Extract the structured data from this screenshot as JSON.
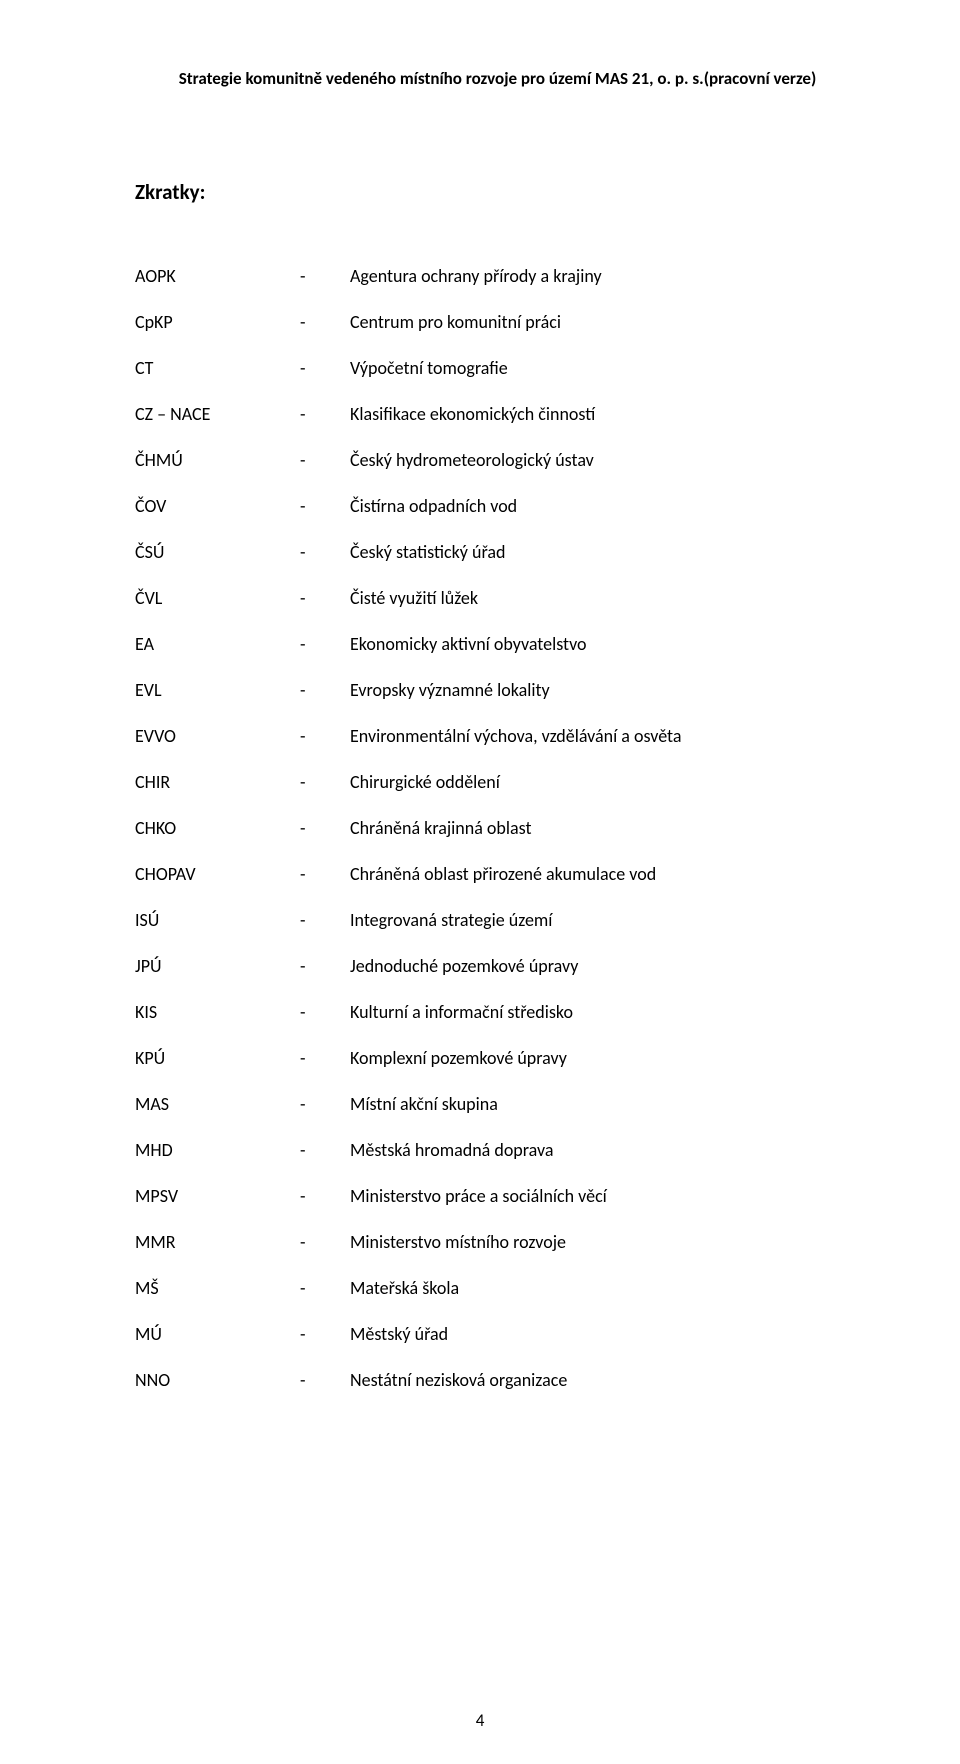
{
  "header": "Strategie komunitně vedeného místního rozvoje pro území  MAS 21, o. p. s.(pracovní verze)",
  "section_title": "Zkratky:",
  "separator": "-",
  "page_number": "4",
  "abbreviations": [
    {
      "key": "AOPK",
      "def": "Agentura ochrany přírody a krajiny"
    },
    {
      "key": "CpKP",
      "def": "Centrum pro komunitní práci"
    },
    {
      "key": "CT",
      "def": "Výpočetní tomografie"
    },
    {
      "key": "CZ – NACE",
      "def": "Klasifikace ekonomických činností"
    },
    {
      "key": "ČHMÚ",
      "def": "Český hydrometeorologický ústav"
    },
    {
      "key": "ČOV",
      "def": "Čistírna odpadních vod"
    },
    {
      "key": "ČSÚ",
      "def": "Český statistický úřad"
    },
    {
      "key": "ČVL",
      "def": "Čisté využití lůžek"
    },
    {
      "key": "EA",
      "def": "Ekonomicky aktivní obyvatelstvo"
    },
    {
      "key": "EVL",
      "def": "Evropsky významné lokality"
    },
    {
      "key": "EVVO",
      "def": "Environmentální výchova, vzdělávání a osvěta"
    },
    {
      "key": "CHIR",
      "def": "Chirurgické oddělení"
    },
    {
      "key": "CHKO",
      "def": "Chráněná krajinná oblast"
    },
    {
      "key": "CHOPAV",
      "def": "Chráněná oblast přirozené akumulace vod"
    },
    {
      "key": "ISÚ",
      "def": "Integrovaná strategie území"
    },
    {
      "key": "JPÚ",
      "def": "Jednoduché pozemkové úpravy"
    },
    {
      "key": "KIS",
      "def": "Kulturní a informační středisko"
    },
    {
      "key": "KPÚ",
      "def": "Komplexní pozemkové úpravy"
    },
    {
      "key": "MAS",
      "def": "Místní akční skupina"
    },
    {
      "key": "MHD",
      "def": "Městská hromadná doprava"
    },
    {
      "key": "MPSV",
      "def": "Ministerstvo práce a sociálních věcí"
    },
    {
      "key": "MMR",
      "def": "Ministerstvo místního rozvoje"
    },
    {
      "key": "MŠ",
      "def": "Mateřská škola"
    },
    {
      "key": "MÚ",
      "def": "Městský úřad"
    },
    {
      "key": "NNO",
      "def": "Nestátní nezisková organizace"
    }
  ]
}
